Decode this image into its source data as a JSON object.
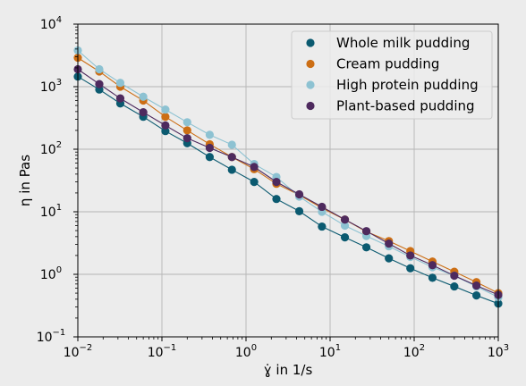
{
  "chart_data": {
    "type": "scatter",
    "xlabel": "ɣ̇ in 1/s",
    "ylabel": "η in Pas",
    "xscale": "log",
    "yscale": "log",
    "xlim": [
      0.01,
      1000
    ],
    "ylim": [
      0.1,
      10000
    ],
    "grid": true,
    "legend": "top-right",
    "x_ticks": [
      {
        "base": "10",
        "exp": "−2"
      },
      {
        "base": "10",
        "exp": "−1"
      },
      {
        "base": "10",
        "exp": "0"
      },
      {
        "base": "10",
        "exp": "1"
      },
      {
        "base": "10",
        "exp": "2"
      },
      {
        "base": "10",
        "exp": "3"
      }
    ],
    "y_ticks": [
      {
        "base": "10",
        "exp": "−1"
      },
      {
        "base": "10",
        "exp": "0"
      },
      {
        "base": "10",
        "exp": "1"
      },
      {
        "base": "10",
        "exp": "2"
      },
      {
        "base": "10",
        "exp": "3"
      },
      {
        "base": "10",
        "exp": "4"
      }
    ],
    "x": [
      0.01,
      0.018,
      0.032,
      0.06,
      0.11,
      0.2,
      0.37,
      0.68,
      1.25,
      2.3,
      4.3,
      8,
      15,
      27,
      50,
      90,
      165,
      300,
      550,
      1000
    ],
    "series": [
      {
        "name": "Whole milk pudding",
        "color": "#0b5a70",
        "values": [
          1450,
          900,
          540,
          330,
          195,
          125,
          75,
          47,
          30,
          16,
          10.2,
          5.8,
          3.9,
          2.7,
          1.8,
          1.25,
          0.88,
          0.64,
          0.46,
          0.34
        ]
      },
      {
        "name": "Cream pudding",
        "color": "#cc6e14",
        "values": [
          2900,
          1750,
          1000,
          600,
          330,
          200,
          120,
          75,
          48,
          28,
          18.5,
          11.5,
          7.5,
          4.8,
          3.4,
          2.35,
          1.6,
          1.1,
          0.75,
          0.5
        ]
      },
      {
        "name": "High protein pudding",
        "color": "#8dc2d2",
        "values": [
          3800,
          1900,
          1150,
          690,
          430,
          270,
          170,
          118,
          58,
          36,
          17.5,
          10,
          6,
          4.1,
          2.8,
          1.9,
          1.3,
          0.95,
          0.64,
          0.43
        ]
      },
      {
        "name": "Plant-based pudding",
        "color": "#4e2a5e",
        "values": [
          1900,
          1100,
          650,
          390,
          240,
          150,
          105,
          75,
          52,
          30,
          19,
          12,
          7.5,
          4.9,
          3.1,
          2,
          1.4,
          0.95,
          0.66,
          0.47
        ]
      }
    ]
  },
  "colors": {
    "background": "#ececec",
    "grid": "#b5b5b5",
    "axes": "#000000"
  }
}
